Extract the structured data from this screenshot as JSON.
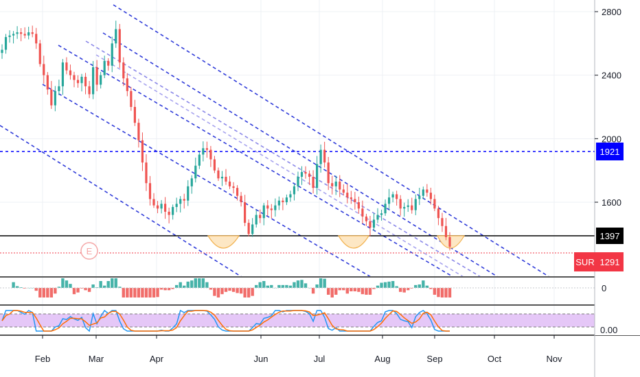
{
  "chart_data": {
    "type": "candlestick",
    "symbol_label": "SUR",
    "y_ticks": [
      "2800",
      "2400",
      "2000",
      "1600"
    ],
    "osc_ticks": [
      "0",
      "0.00"
    ],
    "x_ticks": [
      "Feb",
      "Mar",
      "Apr",
      "Jun",
      "Jul",
      "Aug",
      "Sep",
      "Oct",
      "Nov"
    ],
    "ylim": [
      1150,
      2900
    ],
    "grid": true,
    "price_levels": [
      {
        "label": "1921",
        "value": 1921,
        "color": "#0000ff",
        "style": "dotted"
      },
      {
        "label": "1397",
        "value": 1397,
        "color": "#000000",
        "style": "solid"
      },
      {
        "label": "1291",
        "value": 1291,
        "color": "#f23645",
        "style": "dotted"
      }
    ],
    "event_marker": "E",
    "series": [
      {
        "type": "close",
        "values": [
          2560,
          2640,
          2650,
          2660,
          2670,
          2660,
          2650,
          2670,
          2660,
          2600,
          2470,
          2400,
          2310,
          2210,
          2300,
          2330,
          2480,
          2430,
          2400,
          2370,
          2350,
          2390,
          2330,
          2280,
          2450,
          2340,
          2400,
          2490,
          2460,
          2600,
          2690,
          2480,
          2380,
          2300,
          2200,
          2100,
          1990,
          1850,
          1720,
          1620,
          1580,
          1560,
          1590,
          1540,
          1520,
          1570,
          1590,
          1620,
          1610,
          1700,
          1750,
          1830,
          1900,
          1940,
          1930,
          1870,
          1800,
          1750,
          1760,
          1730,
          1700,
          1690,
          1640,
          1600,
          1470,
          1400,
          1460,
          1520,
          1500,
          1580,
          1560,
          1550,
          1580,
          1610,
          1600,
          1630,
          1650,
          1700,
          1760,
          1790,
          1780,
          1760,
          1690,
          1840,
          1930,
          1850,
          1720,
          1700,
          1730,
          1680,
          1660,
          1630,
          1620,
          1600,
          1560,
          1510,
          1480,
          1440,
          1490,
          1520,
          1530,
          1590,
          1630,
          1650,
          1620,
          1560,
          1570,
          1580,
          1550,
          1620,
          1640,
          1680,
          1660,
          1620,
          1560,
          1500,
          1450,
          1380,
          1320
        ]
      }
    ]
  }
}
